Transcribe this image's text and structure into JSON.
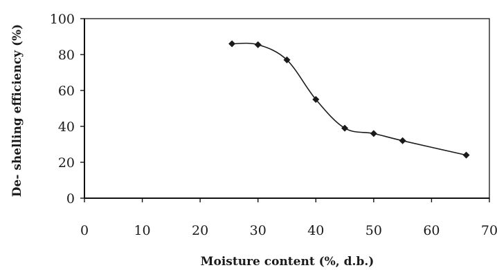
{
  "chart_data": {
    "type": "line",
    "title": "",
    "xlabel": "Moisture content (%, d.b.)",
    "ylabel": "De- shelling efficiency (%)",
    "xlim": [
      0,
      70
    ],
    "ylim": [
      0,
      100
    ],
    "xticks": [
      "0",
      "10",
      "20",
      "30",
      "40",
      "50",
      "60",
      "70"
    ],
    "yticks": [
      "0",
      "20",
      "40",
      "60",
      "80",
      "100"
    ],
    "grid": false,
    "series": [
      {
        "name": "",
        "marker": "diamond",
        "smooth": true,
        "color": "#1a1a1a",
        "x": [
          25.5,
          30,
          35,
          40,
          45,
          50,
          55,
          66
        ],
        "y": [
          86,
          85.5,
          77,
          55,
          39,
          36,
          32,
          24
        ]
      }
    ]
  }
}
